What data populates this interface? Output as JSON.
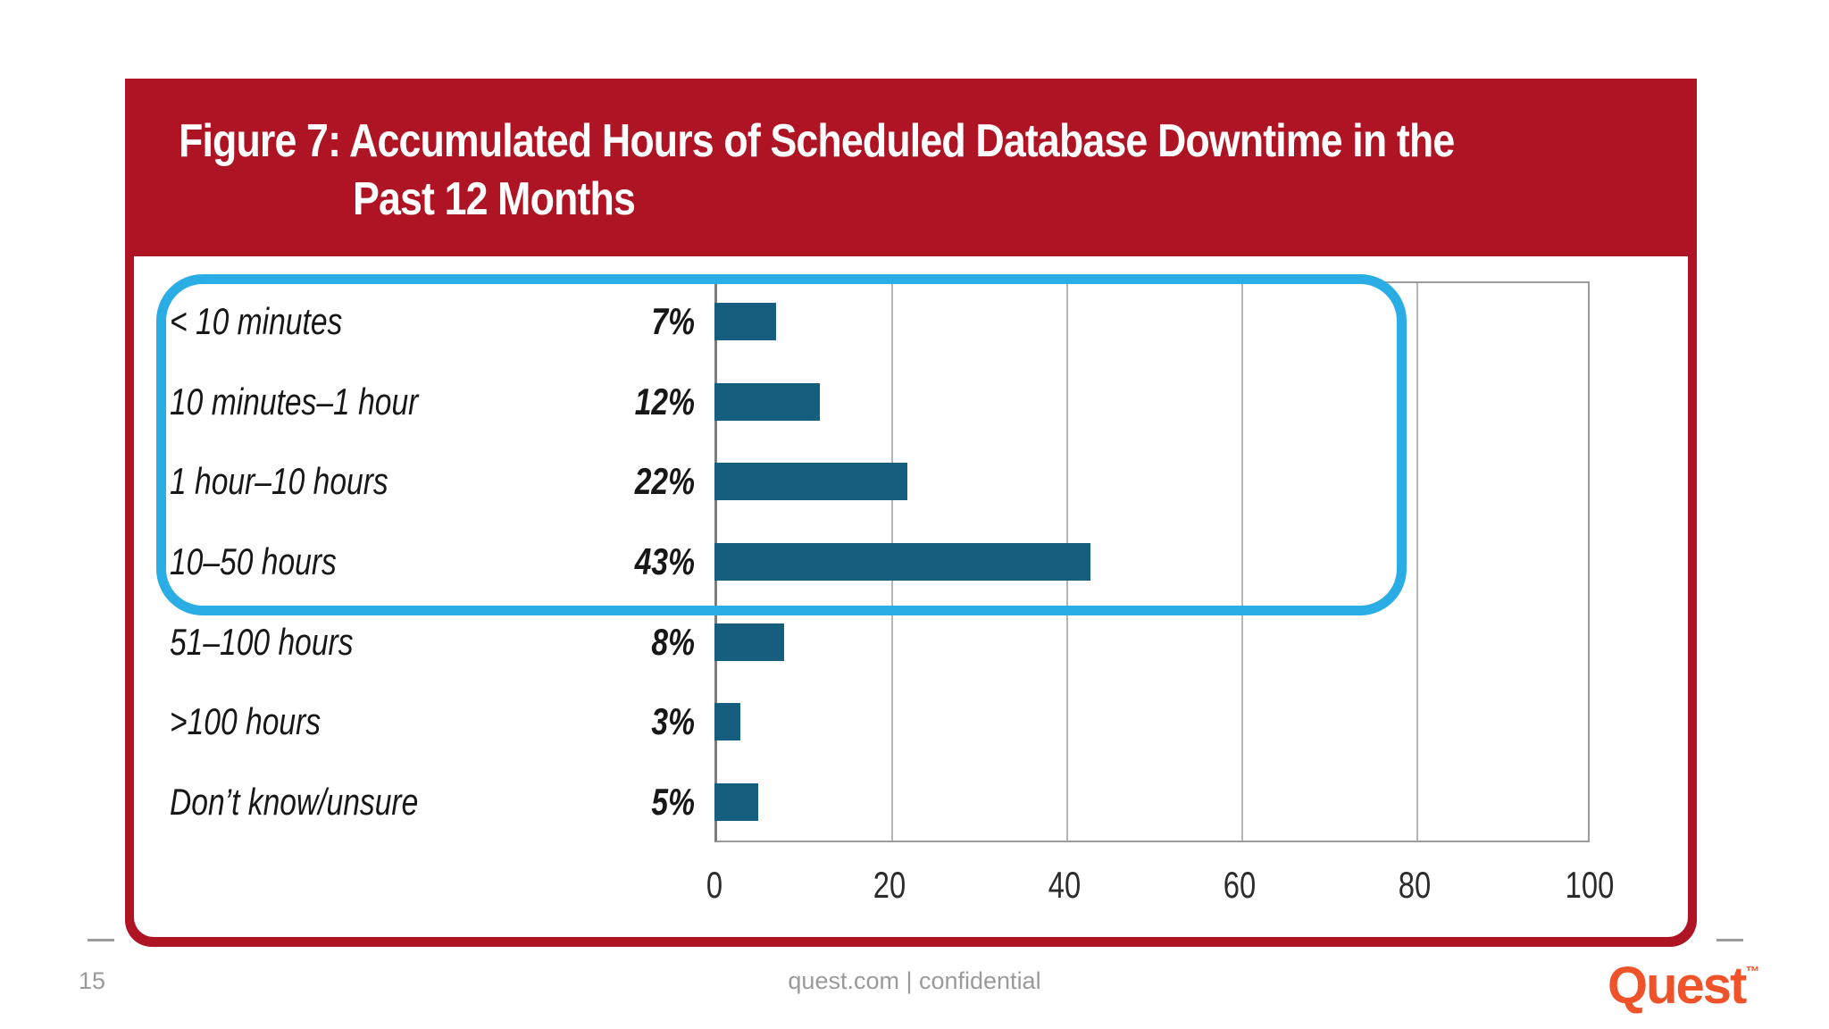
{
  "title": {
    "line1": "Figure 7: Accumulated Hours of Scheduled Database Downtime in the",
    "line2": "Past 12 Months"
  },
  "chart_data": {
    "type": "bar",
    "orientation": "horizontal",
    "title": "Figure 7: Accumulated Hours of Scheduled Database Downtime in the Past 12 Months",
    "categories": [
      "< 10 minutes",
      "10 minutes–1 hour",
      "1 hour–10 hours",
      "10–50 hours",
      "51–100 hours",
      ">100 hours",
      "Don’t know/unsure"
    ],
    "values": [
      7,
      12,
      22,
      43,
      8,
      3,
      5
    ],
    "value_labels": [
      "7%",
      "12%",
      "22%",
      "43%",
      "8%",
      "3%",
      "5%"
    ],
    "x_ticks": [
      0,
      20,
      40,
      60,
      80,
      100
    ],
    "xlim": [
      0,
      100
    ],
    "xlabel": "",
    "ylabel": "",
    "grid": true,
    "legend": false,
    "bar_color": "#155e7d",
    "highlight_box": {
      "rows_covered": [
        0,
        1,
        2,
        3
      ],
      "color": "#29ade4"
    }
  },
  "footer": {
    "page_number": "15",
    "center_text": "quest.com | confidential",
    "logo_text": "Quest",
    "logo_tm": "™"
  },
  "colors": {
    "banner_red": "#ae1423",
    "bar_teal": "#155e7d",
    "highlight_cyan": "#29ade4",
    "gridline_gray": "#b5b5b5",
    "footer_gray": "#9a9a9a",
    "logo_orange": "#f0532a"
  }
}
